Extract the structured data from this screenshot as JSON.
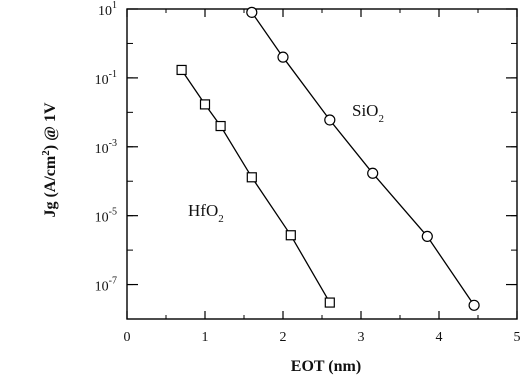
{
  "chart_data": {
    "type": "line",
    "xlabel": "EOT (nm)",
    "ylabel_parts": {
      "base": "Jg (A/cm",
      "sup": "2",
      "tail": ") @ 1V"
    },
    "x_scale": "linear",
    "y_scale": "log",
    "xlim": [
      0,
      5
    ],
    "ylim": [
      1e-08,
      10
    ],
    "x_ticks": [
      0,
      1,
      2,
      3,
      4,
      5
    ],
    "x_tick_labels": [
      "0",
      "1",
      "2",
      "3",
      "4",
      "5"
    ],
    "y_ticks": [
      10,
      0.1,
      0.001,
      1e-05,
      1e-07
    ],
    "y_tick_labels": [
      {
        "base": "10",
        "exp": "1"
      },
      {
        "base": "10",
        "exp": "-1"
      },
      {
        "base": "10",
        "exp": "-3"
      },
      {
        "base": "10",
        "exp": "-5"
      },
      {
        "base": "10",
        "exp": "-7"
      }
    ],
    "grid": false,
    "series": [
      {
        "label_parts": {
          "base": "SiO",
          "sub": "2"
        },
        "marker": "circle",
        "x": [
          1.6,
          2.0,
          2.6,
          3.15,
          3.85,
          4.45
        ],
        "y": [
          8,
          0.4,
          0.006,
          0.00017,
          2.5e-06,
          2.5e-08
        ]
      },
      {
        "label_parts": {
          "base": "HfO",
          "sub": "2"
        },
        "marker": "square",
        "x": [
          0.7,
          1.0,
          1.2,
          1.6,
          2.1,
          2.6
        ],
        "y": [
          0.17,
          0.017,
          0.004,
          0.00013,
          2.7e-06,
          3e-08
        ]
      }
    ]
  }
}
